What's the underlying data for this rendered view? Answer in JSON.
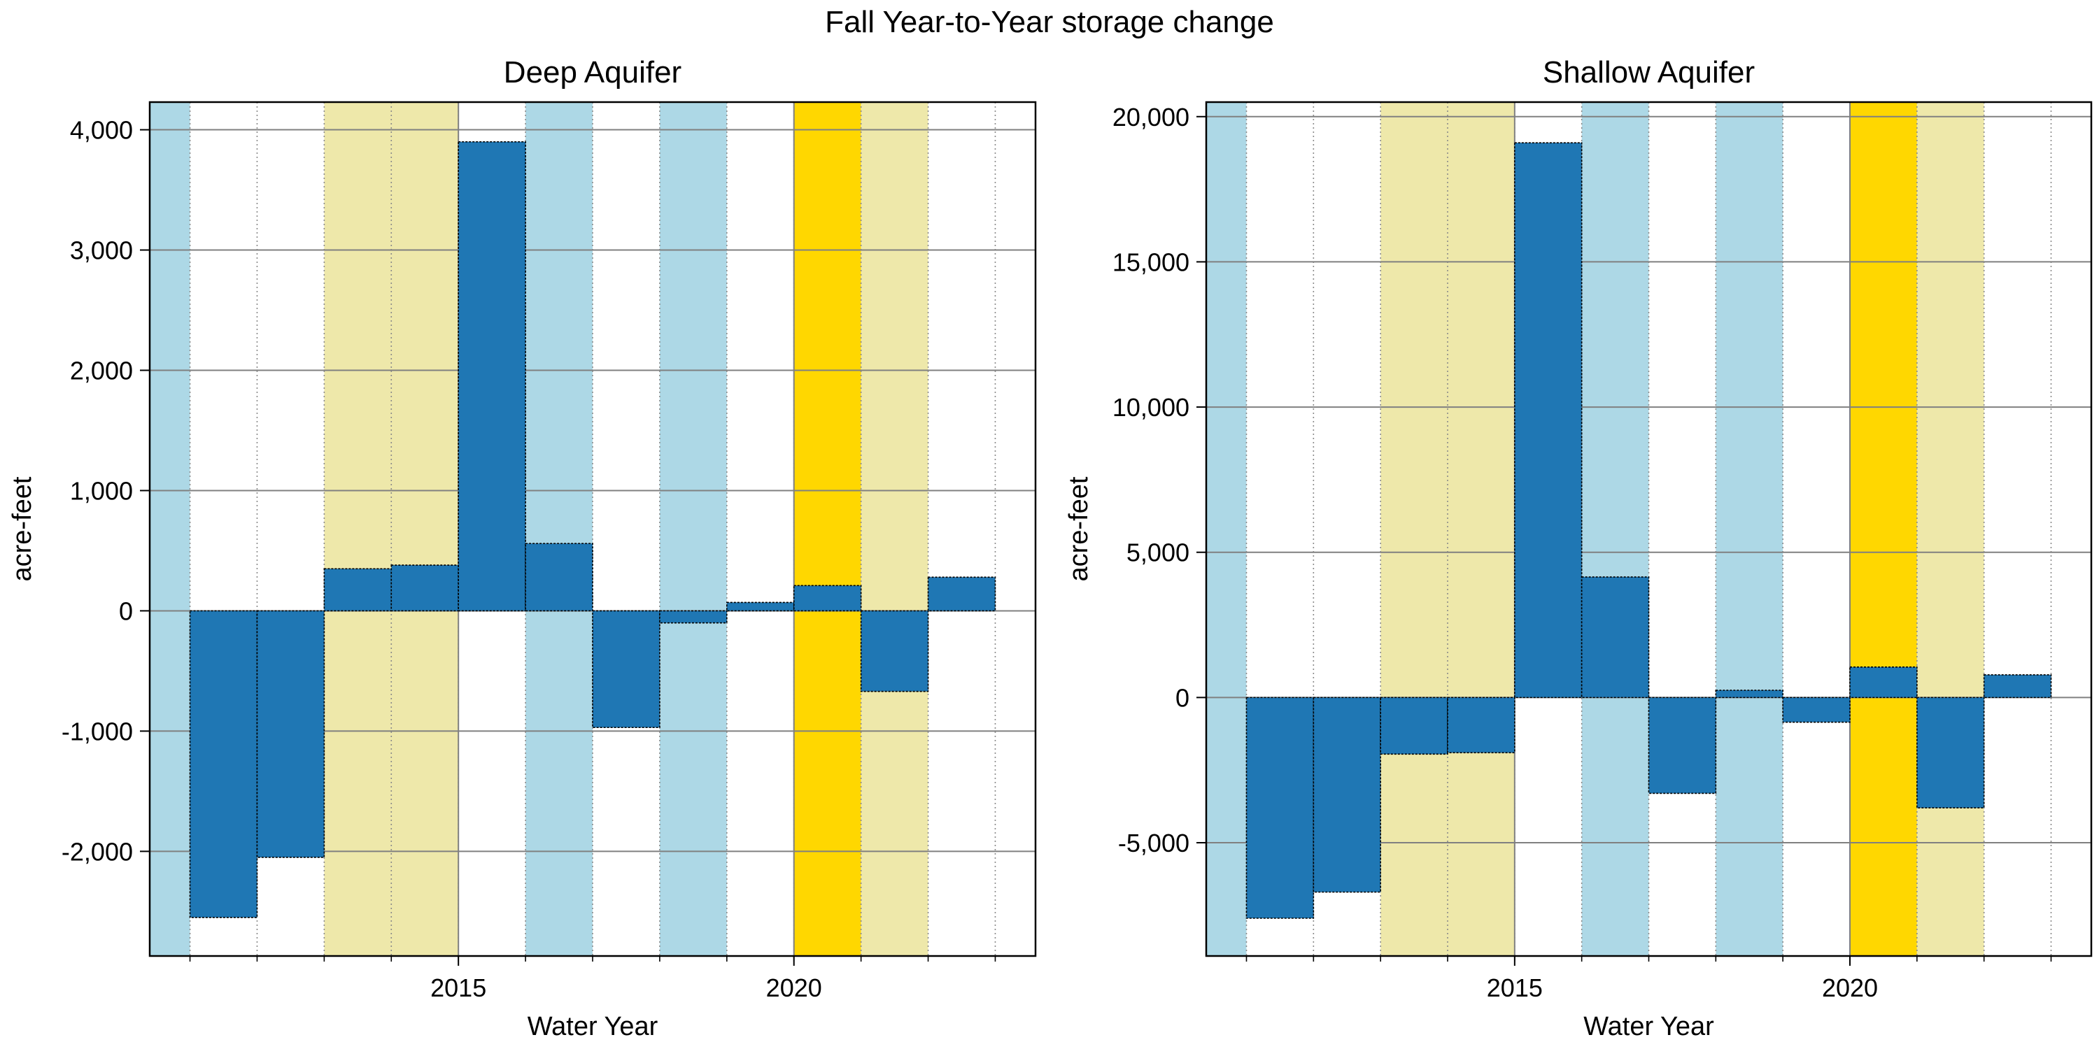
{
  "figure": {
    "title": "Fall Year-to-Year storage change"
  },
  "chart_data": [
    {
      "type": "bar",
      "title": "Deep Aquifer",
      "xlabel": "Water Year",
      "ylabel": "acre-feet",
      "x": [
        2012,
        2013,
        2014,
        2015,
        2016,
        2017,
        2018,
        2019,
        2020,
        2021,
        2022,
        2023
      ],
      "values": [
        -2550,
        -2050,
        350,
        380,
        3900,
        560,
        -970,
        -100,
        70,
        210,
        -670,
        280
      ],
      "xlim": [
        2010.6,
        2023.8
      ],
      "ylim": [
        -2870,
        4230
      ],
      "x_ticks": [
        2015,
        2020
      ],
      "x_tick_labels": [
        "2015",
        "2020"
      ],
      "y_ticks": [
        -2000,
        -1000,
        0,
        1000,
        2000,
        3000,
        4000
      ],
      "y_tick_labels": [
        "-2,000",
        "-1,000",
        "0",
        "1,000",
        "2,000",
        "3,000",
        "4,000"
      ],
      "grid": true,
      "bar_color": "#1f77b4",
      "year_type_bands": [
        {
          "start": 2010.6,
          "end": 2011.2,
          "color": "#add8e6"
        },
        {
          "start": 2013.2,
          "end": 2015.2,
          "color": "#eee8aa"
        },
        {
          "start": 2016.2,
          "end": 2017.2,
          "color": "#add8e6"
        },
        {
          "start": 2018.2,
          "end": 2019.2,
          "color": "#add8e6"
        },
        {
          "start": 2020.2,
          "end": 2021.2,
          "color": "#ffd700"
        },
        {
          "start": 2021.2,
          "end": 2022.2,
          "color": "#eee8aa"
        }
      ]
    },
    {
      "type": "bar",
      "title": "Shallow  Aquifer",
      "xlabel": "Water Year",
      "ylabel": "acre-feet",
      "x": [
        2012,
        2013,
        2014,
        2015,
        2016,
        2017,
        2018,
        2019,
        2020,
        2021,
        2022,
        2023
      ],
      "values": [
        -7600,
        -6700,
        -1950,
        -1900,
        19100,
        4150,
        -3300,
        250,
        -850,
        1050,
        -3800,
        780
      ],
      "xlim": [
        2010.6,
        2023.8
      ],
      "ylim": [
        -8900,
        20500
      ],
      "x_ticks": [
        2015,
        2020
      ],
      "x_tick_labels": [
        "2015",
        "2020"
      ],
      "y_ticks": [
        -5000,
        0,
        5000,
        10000,
        15000,
        20000
      ],
      "y_tick_labels": [
        "-5,000",
        "0",
        "5,000",
        "10,000",
        "15,000",
        "20,000"
      ],
      "grid": true,
      "bar_color": "#1f77b4",
      "year_type_bands": [
        {
          "start": 2010.6,
          "end": 2011.2,
          "color": "#add8e6"
        },
        {
          "start": 2013.2,
          "end": 2015.2,
          "color": "#eee8aa"
        },
        {
          "start": 2016.2,
          "end": 2017.2,
          "color": "#add8e6"
        },
        {
          "start": 2018.2,
          "end": 2019.2,
          "color": "#add8e6"
        },
        {
          "start": 2020.2,
          "end": 2021.2,
          "color": "#ffd700"
        },
        {
          "start": 2021.2,
          "end": 2022.2,
          "color": "#eee8aa"
        }
      ]
    }
  ]
}
